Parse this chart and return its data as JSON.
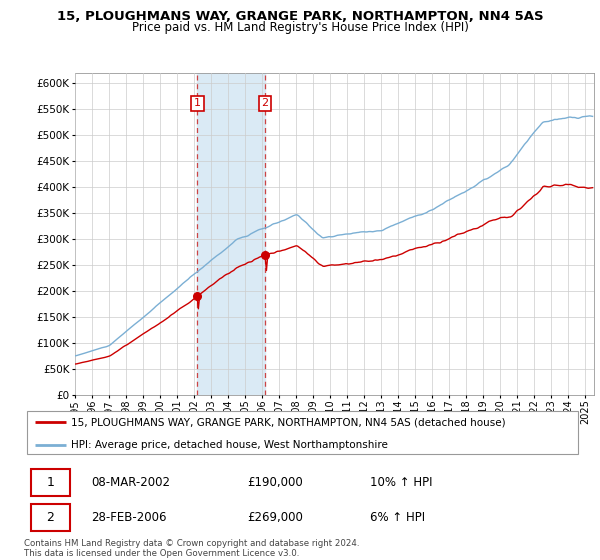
{
  "title": "15, PLOUGHMANS WAY, GRANGE PARK, NORTHAMPTON, NN4 5AS",
  "subtitle": "Price paid vs. HM Land Registry's House Price Index (HPI)",
  "legend_line1": "15, PLOUGHMANS WAY, GRANGE PARK, NORTHAMPTON, NN4 5AS (detached house)",
  "legend_line2": "HPI: Average price, detached house, West Northamptonshire",
  "footer": "Contains HM Land Registry data © Crown copyright and database right 2024.\nThis data is licensed under the Open Government Licence v3.0.",
  "sale1_label": "1",
  "sale1_date": "08-MAR-2002",
  "sale1_price": "£190,000",
  "sale1_hpi": "10% ↑ HPI",
  "sale1_x": 2002.19,
  "sale1_y": 190000,
  "sale2_label": "2",
  "sale2_date": "28-FEB-2006",
  "sale2_price": "£269,000",
  "sale2_hpi": "6% ↑ HPI",
  "sale2_x": 2006.16,
  "sale2_y": 269000,
  "ylim": [
    0,
    620000
  ],
  "yticks": [
    0,
    50000,
    100000,
    150000,
    200000,
    250000,
    300000,
    350000,
    400000,
    450000,
    500000,
    550000,
    600000
  ],
  "red_color": "#cc0000",
  "blue_color": "#7bafd4",
  "grid_color": "#cccccc",
  "shade_color": "#daeaf5",
  "xlim_left": 1995.0,
  "xlim_right": 2025.5
}
